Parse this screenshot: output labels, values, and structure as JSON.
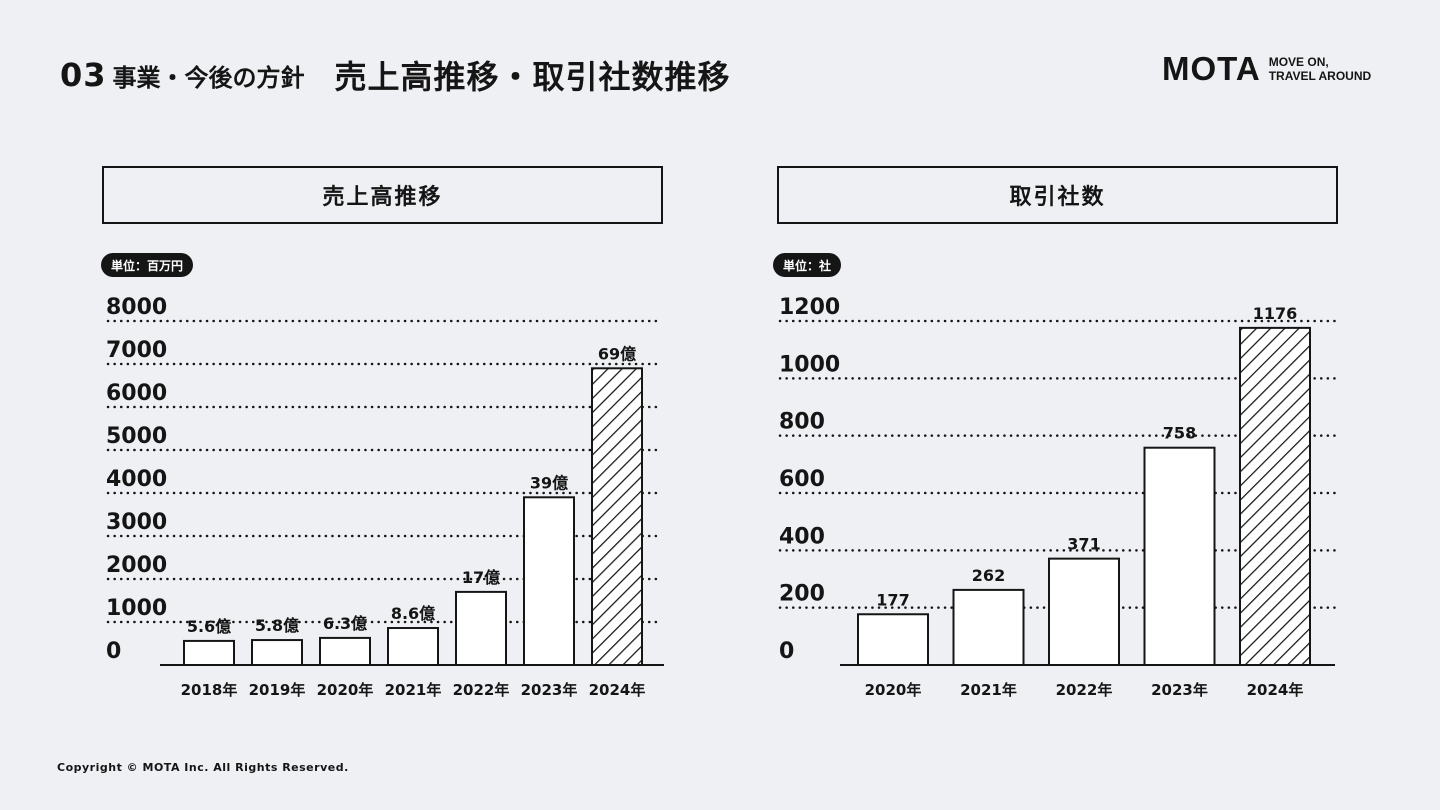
{
  "header": {
    "section_no": "03",
    "section_name": "事業・今後の方針",
    "title": "売上高推移・取引社数推移"
  },
  "logo": {
    "mark": "MOTA",
    "tagline_line1": "MOVE ON,",
    "tagline_line2": "TRAVEL AROUND"
  },
  "footer": {
    "copyright": "Copyright © MOTA Inc. All Rights Reserved."
  },
  "colors": {
    "ink": "#151515",
    "background": "#eef0f3"
  },
  "chart_data": [
    {
      "type": "bar",
      "title": "売上高推移",
      "unit_label": "単位：百万円",
      "categories": [
        "2018年",
        "2019年",
        "2020年",
        "2021年",
        "2022年",
        "2023年",
        "2024年"
      ],
      "values": [
        560,
        580,
        630,
        860,
        1700,
        3900,
        6900
      ],
      "data_labels": [
        "5.6億",
        "5.8億",
        "6.3億",
        "8.6億",
        "17億",
        "39億",
        "69億"
      ],
      "highlight_index": 6,
      "ylim": [
        0,
        8000
      ],
      "yticks": [
        0,
        1000,
        2000,
        3000,
        4000,
        5000,
        6000,
        7000,
        8000
      ],
      "grid": "dotted horizontal"
    },
    {
      "type": "bar",
      "title": "取引社数",
      "unit_label": "単位：社",
      "categories": [
        "2020年",
        "2021年",
        "2022年",
        "2023年",
        "2024年"
      ],
      "values": [
        177,
        262,
        371,
        758,
        1176
      ],
      "data_labels": [
        "177",
        "262",
        "371",
        "758",
        "1176"
      ],
      "highlight_index": 4,
      "ylim": [
        0,
        1200
      ],
      "yticks": [
        0,
        200,
        400,
        600,
        800,
        1000,
        1200
      ],
      "grid": "dotted horizontal"
    }
  ]
}
